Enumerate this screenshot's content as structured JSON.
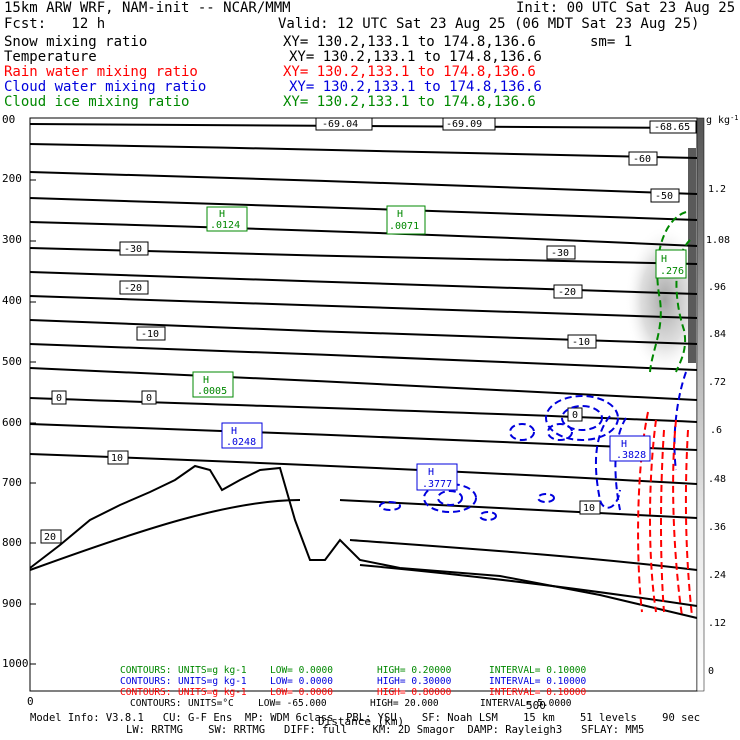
{
  "header": {
    "model": "15km ARW WRF, NAM-init -- NCAR/MMM",
    "init": "Init: 00 UTC Sat 23 Aug 25",
    "fcst": "Fcst:   12 h",
    "valid": "Valid: 12 UTC Sat 23 Aug 25 (06 MDT Sat 23 Aug 25)",
    "fields": [
      {
        "name": "Snow mixing ratio",
        "xy": "XY= 130.2,133.1 to 174.8,136.6",
        "extra": "sm= 1",
        "color": "#000000"
      },
      {
        "name": "Temperature",
        "xy": "XY= 130.2,133.1 to 174.8,136.6",
        "extra": "",
        "color": "#000000"
      },
      {
        "name": "Rain water mixing ratio",
        "xy": "XY= 130.2,133.1 to 174.8,136.6",
        "extra": "",
        "color": "#ff0000"
      },
      {
        "name": "Cloud water mixing ratio",
        "xy": "XY= 130.2,133.1 to 174.8,136.6",
        "extra": "",
        "color": "#0000dd"
      },
      {
        "name": "Cloud ice mixing ratio",
        "xy": "XY= 130.2,133.1 to 174.8,136.6",
        "extra": "",
        "color": "#008800"
      }
    ]
  },
  "chart_data": {
    "type": "contour-cross-section",
    "x_axis": {
      "ticks": [
        "0",
        "500"
      ],
      "label": "Distance (km)"
    },
    "y_axis_left": {
      "ticks": [
        "00",
        "200",
        "300",
        "400",
        "500",
        "600",
        "700",
        "800",
        "900",
        "1000"
      ]
    },
    "colorbar": {
      "unit": "g kg-1",
      "ticks": [
        "1.2",
        "1.08",
        ".96",
        ".84",
        ".72",
        ".6",
        ".48",
        ".36",
        ".24",
        ".12",
        "0"
      ]
    },
    "temperature_contour_labels": [
      "-69.04",
      "-69.09",
      "-68.65",
      "-60",
      "-50",
      "-30",
      "-30",
      "-20",
      "-20",
      "-10",
      "-10",
      "0",
      "0",
      "0",
      "10",
      "10",
      "20"
    ],
    "maxima_boxes": [
      {
        "letter": "H",
        "value": ".0124",
        "field": "Cloud ice mixing ratio"
      },
      {
        "letter": "H",
        "value": ".0071",
        "field": "Cloud ice mixing ratio"
      },
      {
        "letter": "H",
        "value": ".276",
        "field": "Cloud ice mixing ratio"
      },
      {
        "letter": "H",
        "value": ".0005",
        "field": "Cloud ice mixing ratio"
      },
      {
        "letter": "H",
        "value": ".0248",
        "field": "Cloud water mixing ratio"
      },
      {
        "letter": "H",
        "value": ".3777",
        "field": "Cloud water mixing ratio"
      },
      {
        "letter": "H",
        "value": ".3828",
        "field": "Cloud water mixing ratio"
      }
    ],
    "contour_settings": [
      {
        "contours": "CONTOURS:",
        "units": "UNITS=g kg-1",
        "low": "LOW=  0.0000",
        "high": "HIGH= 0.20000",
        "interval": "INTERVAL=  0.10000",
        "color": "#008800"
      },
      {
        "contours": "CONTOURS:",
        "units": "UNITS=g kg-1",
        "low": "LOW=  0.0000",
        "high": "HIGH= 0.30000",
        "interval": "INTERVAL=  0.10000",
        "color": "#0000dd"
      },
      {
        "contours": "CONTOURS:",
        "units": "UNITS=g kg-1",
        "low": "LOW=  0.0000",
        "high": "HIGH= 0.80000",
        "interval": "INTERVAL=  0.10000",
        "color": "#ff0000"
      },
      {
        "contours": "CONTOURS:",
        "units": "UNITS=°C",
        "low": "LOW= -65.000",
        "high": "HIGH=  20.000",
        "interval": "INTERVAL=  5.0000",
        "color": "#000000"
      }
    ]
  },
  "footer": {
    "line1": "Model Info: V3.8.1   CU: G-F Ens  MP: WDM 6class  PBL: YSU    SF: Noah LSM    15 km    51 levels    90 sec",
    "line2": "LW: RRTMG    SW: RRTMG   DIFF: full    KM: 2D Smagor  DAMP: Rayleigh3   SFLAY: MM5"
  }
}
